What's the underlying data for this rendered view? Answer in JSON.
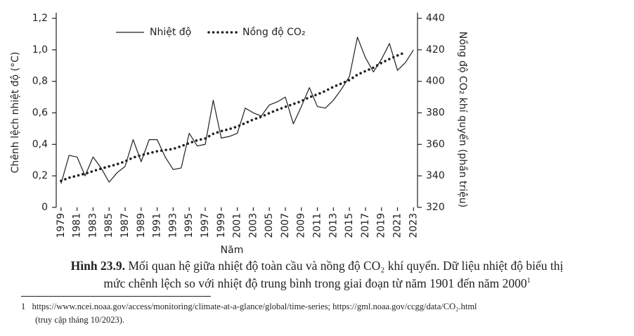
{
  "chart_data": {
    "type": "line",
    "x_label": "Năm",
    "y_label": "Chênh lệch nhiệt độ (°C)",
    "y2_label": "Nồng độ CO₂ khí quyển (phần triệu)",
    "x": [
      1979,
      1980,
      1981,
      1982,
      1983,
      1984,
      1985,
      1986,
      1987,
      1988,
      1989,
      1990,
      1991,
      1992,
      1993,
      1994,
      1995,
      1996,
      1997,
      1998,
      1999,
      2000,
      2001,
      2002,
      2003,
      2004,
      2005,
      2006,
      2007,
      2008,
      2009,
      2010,
      2011,
      2012,
      2013,
      2014,
      2015,
      2016,
      2017,
      2018,
      2019,
      2020,
      2021,
      2022,
      2023
    ],
    "series": [
      {
        "name": "Nhiệt độ",
        "color": "#231f20",
        "style": "solid",
        "values": [
          0.15,
          0.33,
          0.32,
          0.2,
          0.32,
          0.25,
          0.16,
          0.22,
          0.26,
          0.43,
          0.29,
          0.43,
          0.43,
          0.32,
          0.24,
          0.25,
          0.47,
          0.39,
          0.4,
          0.68,
          0.44,
          0.45,
          0.47,
          0.63,
          0.6,
          0.58,
          0.65,
          0.67,
          0.7,
          0.53,
          0.64,
          0.76,
          0.64,
          0.63,
          0.68,
          0.75,
          0.83,
          1.08,
          0.95,
          0.86,
          0.94,
          1.04,
          0.87,
          0.92,
          1.0
        ]
      },
      {
        "name": "Nồng độ CO₂",
        "color": "#231f20",
        "style": "dotted",
        "axis": "y2",
        "values": [
          336.8,
          338.8,
          340.1,
          341.4,
          343.0,
          344.6,
          346.0,
          347.4,
          349.2,
          351.6,
          353.1,
          354.4,
          355.6,
          356.4,
          357.1,
          358.8,
          360.8,
          362.6,
          363.7,
          366.7,
          368.4,
          369.7,
          371.3,
          373.5,
          375.8,
          377.5,
          379.8,
          381.9,
          383.8,
          385.6,
          387.4,
          389.9,
          391.7,
          393.9,
          396.5,
          398.6,
          400.8,
          404.2,
          406.5,
          408.7,
          411.7,
          414.2,
          416.4,
          418.5,
          null
        ]
      }
    ],
    "xlim": [
      1978.4,
      2023.5
    ],
    "xticks": [
      1979,
      1981,
      1983,
      1985,
      1987,
      1989,
      1991,
      1993,
      1995,
      1997,
      1999,
      2001,
      2003,
      2005,
      2007,
      2009,
      2011,
      2013,
      2015,
      2017,
      2019,
      2021,
      2023
    ],
    "ylim": [
      0,
      1.236
    ],
    "yticks": [
      0,
      {
        "value": 0.2,
        "label": "0,2"
      },
      {
        "value": 0.4,
        "label": "0,4"
      },
      {
        "value": 0.6,
        "label": "0,6"
      },
      {
        "value": 0.8,
        "label": "0,8"
      },
      {
        "value": 1.0,
        "label": "1,0"
      },
      {
        "value": 1.2,
        "label": "1,2"
      }
    ],
    "y2lim": [
      320,
      443.6
    ],
    "y2ticks": [
      320,
      340,
      360,
      380,
      400,
      420,
      440
    ],
    "legend": "top"
  },
  "caption": {
    "label": "Hình 23.9.",
    "line1": "Mối quan hệ giữa nhiệt độ toàn cầu và nồng độ CO₂ khí quyển. Dữ liệu nhiệt độ biểu thị",
    "line2": "mức chênh lệch so với nhiệt độ trung bình trong giai đoạn từ năm 1901 đến năm 2000",
    "note_ref": "1"
  },
  "footnote": {
    "number": "1",
    "line1": "https://www.ncei.noaa.gov/access/monitoring/climate-at-a-glance/global/time-series; https://gml.noaa.gov/ccgg/data/CO₂.html",
    "line2": "(truy cập tháng 10/2023)."
  }
}
